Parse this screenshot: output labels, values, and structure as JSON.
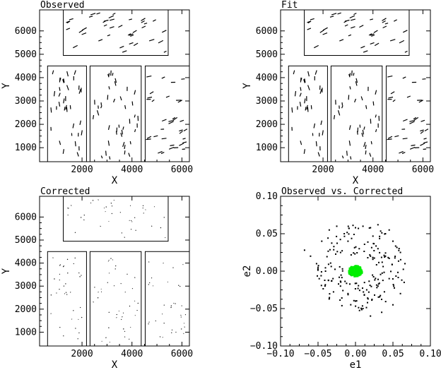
{
  "chart_data": [
    {
      "type": "vector-field",
      "title": "Observed",
      "xlabel": "X",
      "ylabel": "Y",
      "xlim": [
        300,
        6300
      ],
      "ylim": [
        400,
        6900
      ],
      "xticks": [
        2000,
        4000,
        6000
      ],
      "yticks": [
        1000,
        2000,
        3000,
        4000,
        5000,
        6000
      ],
      "chips": [
        {
          "x0": 620,
          "x1": 2180,
          "y0": 300,
          "y1": 4500
        },
        {
          "x0": 2320,
          "x1": 4370,
          "y0": 300,
          "y1": 4500
        },
        {
          "x0": 4530,
          "x1": 6300,
          "y0": 300,
          "y1": 4500
        },
        {
          "x0": 1250,
          "x1": 5450,
          "y0": 4950,
          "y1": 6900
        }
      ],
      "sticks": {
        "count": 150,
        "length": 190,
        "angle_deg_min": 15,
        "angle_deg_max": 35
      }
    },
    {
      "type": "vector-field",
      "title": "Fit",
      "xlabel": "X",
      "ylabel": "Y",
      "xlim": [
        300,
        6300
      ],
      "ylim": [
        400,
        6900
      ],
      "xticks": [
        2000,
        4000,
        6000
      ],
      "yticks": [
        1000,
        2000,
        3000,
        4000,
        5000,
        6000
      ],
      "chips": [
        {
          "x0": 620,
          "x1": 2180,
          "y0": 300,
          "y1": 4500
        },
        {
          "x0": 2320,
          "x1": 4370,
          "y0": 300,
          "y1": 4500
        },
        {
          "x0": 4530,
          "x1": 6300,
          "y0": 300,
          "y1": 4500
        },
        {
          "x0": 1250,
          "x1": 5450,
          "y0": 4950,
          "y1": 6900
        }
      ],
      "sticks": {
        "count": 150,
        "length": 190,
        "angle_deg_min": 15,
        "angle_deg_max": 35
      }
    },
    {
      "type": "vector-field",
      "title": "Corrected",
      "xlabel": "X",
      "ylabel": "Y",
      "xlim": [
        300,
        6300
      ],
      "ylim": [
        400,
        6900
      ],
      "xticks": [
        2000,
        4000,
        6000
      ],
      "yticks": [
        1000,
        2000,
        3000,
        4000,
        5000,
        6000
      ],
      "chips": [
        {
          "x0": 620,
          "x1": 2180,
          "y0": 300,
          "y1": 4500
        },
        {
          "x0": 2320,
          "x1": 4370,
          "y0": 300,
          "y1": 4500
        },
        {
          "x0": 4530,
          "x1": 6300,
          "y0": 300,
          "y1": 4500
        },
        {
          "x0": 1250,
          "x1": 5450,
          "y0": 4950,
          "y1": 6900
        }
      ],
      "sticks": {
        "count": 150,
        "length": 30,
        "angle_deg_min": 0,
        "angle_deg_max": 180
      }
    },
    {
      "type": "scatter",
      "title": "Observed vs. Corrected",
      "xlabel": "e1",
      "ylabel": "e2",
      "xlim": [
        -0.1,
        0.1
      ],
      "ylim": [
        -0.1,
        0.1
      ],
      "xticks": [
        -0.1,
        -0.05,
        0.0,
        0.05,
        0.1
      ],
      "yticks": [
        -0.1,
        -0.05,
        0.0,
        0.05,
        0.1
      ],
      "xtick_labels": [
        "−0.10",
        "−0.05",
        "0.00",
        "0.05",
        "0.10"
      ],
      "ytick_labels": [
        "−0.10",
        "−0.05",
        "0.00",
        "0.05",
        "0.10"
      ],
      "series": [
        {
          "color": "#000000",
          "count": 210,
          "approx_extent": {
            "e1": [
              -0.068,
              0.068
            ],
            "e2": [
              -0.062,
              0.065
            ]
          },
          "points_sample": [
            [
              -0.068,
              0.028
            ],
            [
              -0.06,
              0.02
            ],
            [
              -0.052,
              0.01
            ],
            [
              -0.045,
              0.04
            ],
            [
              -0.035,
              0.055
            ],
            [
              -0.025,
              0.06
            ],
            [
              -0.015,
              0.05
            ],
            [
              0.0,
              0.058
            ],
            [
              0.01,
              0.06
            ],
            [
              0.02,
              0.058
            ],
            [
              0.03,
              0.062
            ],
            [
              0.04,
              0.05
            ],
            [
              0.05,
              0.04
            ],
            [
              0.06,
              0.025
            ],
            [
              0.066,
              0.01
            ],
            [
              0.065,
              -0.015
            ],
            [
              0.06,
              -0.03
            ],
            [
              0.05,
              -0.045
            ],
            [
              0.035,
              -0.055
            ],
            [
              0.02,
              -0.06
            ],
            [
              0.01,
              -0.05
            ],
            [
              0.0,
              -0.04
            ],
            [
              -0.01,
              -0.03
            ],
            [
              -0.02,
              -0.02
            ],
            [
              -0.03,
              -0.01
            ],
            [
              -0.04,
              0.0
            ],
            [
              -0.05,
              0.005
            ],
            [
              0.02,
              0.02
            ],
            [
              0.03,
              0.03
            ],
            [
              0.04,
              0.02
            ],
            [
              0.045,
              -0.01
            ],
            [
              0.03,
              -0.02
            ],
            [
              0.015,
              -0.025
            ],
            [
              0.005,
              0.03
            ],
            [
              -0.01,
              0.04
            ],
            [
              0.045,
              0.055
            ]
          ]
        },
        {
          "color": "#00ee00",
          "count": 160,
          "approx_extent": {
            "e1": [
              -0.01,
              0.01
            ],
            "e2": [
              -0.008,
              0.008
            ]
          },
          "center": [
            0.0,
            0.0
          ]
        }
      ]
    }
  ]
}
